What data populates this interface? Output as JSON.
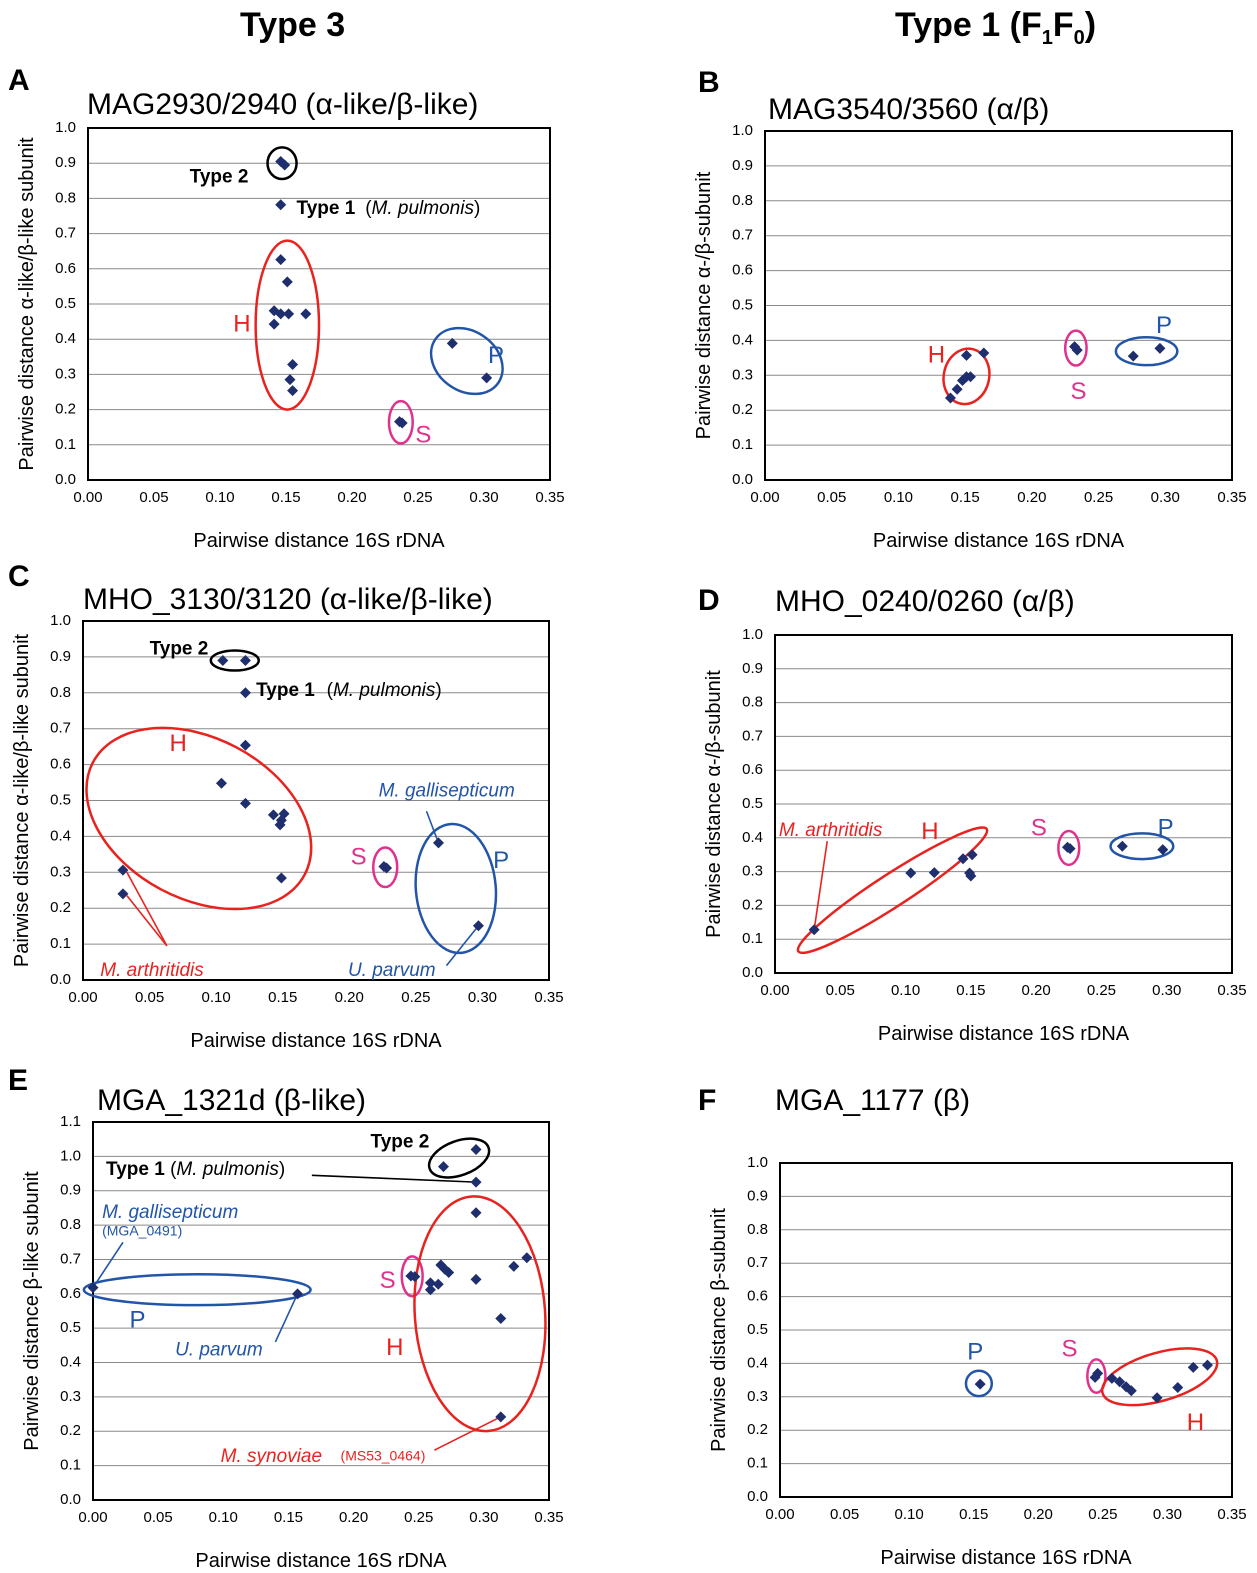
{
  "figure": {
    "column_titles": {
      "left": "Type 3",
      "right_main": "Type 1 (F",
      "right_sub1": "1",
      "right_mid": "F",
      "right_sub2": "0",
      "right_close": ")"
    }
  },
  "colors": {
    "point": "#1f2f6e",
    "human": "#e8231f",
    "swine": "#e0318c",
    "poultry": "#2255a8",
    "frame": "#000000",
    "grid": "#8a8a8a"
  },
  "chart_data": [
    {
      "panel": "A",
      "type": "scatter",
      "title": "MAG2930/2940 (α-like/β-like)",
      "xlabel": "Pairwise distance 16S rDNA",
      "ylabel": "Pairwise distance α-like/β-like subunit",
      "xlim": [
        0,
        0.35
      ],
      "ylim": [
        0,
        1.0
      ],
      "grid": true,
      "xticks": [
        "0.00",
        "0.05",
        "0.10",
        "0.15",
        "0.20",
        "0.25",
        "0.30",
        "0.35"
      ],
      "yticks": [
        "0.0",
        "0.1",
        "0.2",
        "0.3",
        "0.4",
        "0.5",
        "0.6",
        "0.7",
        "0.8",
        "0.9",
        "1.0"
      ],
      "points": [
        [
          0.146,
          0.905
        ],
        [
          0.149,
          0.895
        ],
        [
          0.146,
          0.782
        ],
        [
          0.146,
          0.626
        ],
        [
          0.151,
          0.563
        ],
        [
          0.141,
          0.481
        ],
        [
          0.146,
          0.472
        ],
        [
          0.152,
          0.472
        ],
        [
          0.165,
          0.472
        ],
        [
          0.141,
          0.443
        ],
        [
          0.155,
          0.328
        ],
        [
          0.153,
          0.285
        ],
        [
          0.155,
          0.254
        ],
        [
          0.276,
          0.388
        ],
        [
          0.302,
          0.29
        ],
        [
          0.236,
          0.166
        ],
        [
          0.238,
          0.162
        ]
      ],
      "ellipses": [
        {
          "color": "frame",
          "cx": 0.147,
          "cy": 0.9,
          "rx": 0.011,
          "ry": 0.045,
          "rot": 0
        },
        {
          "color": "human",
          "cx": 0.151,
          "cy": 0.44,
          "rx": 0.024,
          "ry": 0.24,
          "rot": 0
        },
        {
          "color": "poultry",
          "cx": 0.287,
          "cy": 0.338,
          "rx": 0.029,
          "ry": 0.085,
          "rot": 35
        },
        {
          "color": "swine",
          "cx": 0.237,
          "cy": 0.164,
          "rx": 0.009,
          "ry": 0.06,
          "rot": 0
        }
      ],
      "texts": [
        {
          "text": "Type 2",
          "x": 0.077,
          "y": 0.86,
          "color": "frame",
          "bold": true
        },
        {
          "text": "Type 1",
          "x": 0.158,
          "y": 0.77,
          "color": "frame",
          "bold": true
        },
        {
          "text": "(M. pulmonis)",
          "x": 0.21,
          "y": 0.77,
          "color": "frame",
          "italicPart": "M. pulmonis"
        },
        {
          "text": "H",
          "x": 0.11,
          "y": 0.44,
          "color": "human",
          "big": true
        },
        {
          "text": "P",
          "x": 0.303,
          "y": 0.35,
          "color": "poultry",
          "big": true
        },
        {
          "text": "S",
          "x": 0.248,
          "y": 0.125,
          "color": "swine",
          "big": true
        }
      ],
      "lines": []
    },
    {
      "panel": "B",
      "type": "scatter",
      "title": "MAG3540/3560 (α/β)",
      "xlabel": "Pairwise distance 16S rDNA",
      "ylabel": "Pairwise distance α-/β-subunit",
      "xlim": [
        0,
        0.35
      ],
      "ylim": [
        0,
        1.0
      ],
      "grid": true,
      "xticks": [
        "0.00",
        "0.05",
        "0.10",
        "0.15",
        "0.20",
        "0.25",
        "0.30",
        "0.35"
      ],
      "yticks": [
        "0.0",
        "0.1",
        "0.2",
        "0.3",
        "0.4",
        "0.5",
        "0.6",
        "0.7",
        "0.8",
        "0.9",
        "1.0"
      ],
      "points": [
        [
          0.139,
          0.235
        ],
        [
          0.144,
          0.26
        ],
        [
          0.148,
          0.285
        ],
        [
          0.151,
          0.296
        ],
        [
          0.154,
          0.296
        ],
        [
          0.151,
          0.357
        ],
        [
          0.164,
          0.364
        ],
        [
          0.232,
          0.382
        ],
        [
          0.234,
          0.372
        ],
        [
          0.276,
          0.355
        ],
        [
          0.296,
          0.377
        ]
      ],
      "ellipses": [
        {
          "color": "human",
          "cx": 0.151,
          "cy": 0.297,
          "rx": 0.017,
          "ry": 0.08,
          "rot": 12
        },
        {
          "color": "swine",
          "cx": 0.233,
          "cy": 0.378,
          "rx": 0.008,
          "ry": 0.05,
          "rot": 0
        },
        {
          "color": "poultry",
          "cx": 0.286,
          "cy": 0.369,
          "rx": 0.023,
          "ry": 0.04,
          "rot": 0
        }
      ],
      "texts": [
        {
          "text": "H",
          "x": 0.122,
          "y": 0.355,
          "color": "human",
          "big": true
        },
        {
          "text": "S",
          "x": 0.229,
          "y": 0.25,
          "color": "swine",
          "big": true
        },
        {
          "text": "P",
          "x": 0.293,
          "y": 0.44,
          "color": "poultry",
          "big": true
        }
      ],
      "lines": []
    },
    {
      "panel": "C",
      "type": "scatter",
      "title": "MHO_3130/3120 (α-like/β-like)",
      "xlabel": "Pairwise distance 16S rDNA",
      "ylabel": "Pairwise distance α-like/β-like subunit",
      "xlim": [
        0,
        0.35
      ],
      "ylim": [
        0,
        1.0
      ],
      "grid": true,
      "xticks": [
        "0.00",
        "0.05",
        "0.10",
        "0.15",
        "0.20",
        "0.25",
        "0.30",
        "0.35"
      ],
      "yticks": [
        "0.0",
        "0.1",
        "0.2",
        "0.3",
        "0.4",
        "0.5",
        "0.6",
        "0.7",
        "0.8",
        "0.9",
        "1.0"
      ],
      "points": [
        [
          0.105,
          0.89
        ],
        [
          0.122,
          0.89
        ],
        [
          0.122,
          0.8
        ],
        [
          0.122,
          0.654
        ],
        [
          0.104,
          0.548
        ],
        [
          0.122,
          0.492
        ],
        [
          0.143,
          0.46
        ],
        [
          0.151,
          0.463
        ],
        [
          0.149,
          0.445
        ],
        [
          0.148,
          0.432
        ],
        [
          0.149,
          0.284
        ],
        [
          0.03,
          0.306
        ],
        [
          0.03,
          0.24
        ],
        [
          0.226,
          0.316
        ],
        [
          0.228,
          0.312
        ],
        [
          0.267,
          0.382
        ],
        [
          0.297,
          0.151
        ]
      ],
      "ellipses": [
        {
          "color": "frame",
          "cx": 0.114,
          "cy": 0.89,
          "rx": 0.018,
          "ry": 0.028,
          "rot": 0
        },
        {
          "color": "human",
          "cx": 0.087,
          "cy": 0.45,
          "rx": 0.09,
          "ry": 0.224,
          "rot": 28
        },
        {
          "color": "swine",
          "cx": 0.227,
          "cy": 0.314,
          "rx": 0.009,
          "ry": 0.055,
          "rot": 0
        },
        {
          "color": "poultry",
          "cx": 0.28,
          "cy": 0.255,
          "rx": 0.03,
          "ry": 0.18,
          "rot": -5
        }
      ],
      "texts": [
        {
          "text": "Type 2",
          "x": 0.05,
          "y": 0.92,
          "color": "frame",
          "bold": true
        },
        {
          "text": "Type 1",
          "x": 0.13,
          "y": 0.805,
          "color": "frame",
          "bold": true
        },
        {
          "text": "(M. pulmonis)",
          "x": 0.183,
          "y": 0.805,
          "color": "frame",
          "italicPart": "M. pulmonis"
        },
        {
          "text": "H",
          "x": 0.065,
          "y": 0.655,
          "color": "human",
          "big": true
        },
        {
          "text": "S",
          "x": 0.201,
          "y": 0.34,
          "color": "swine",
          "big": true
        },
        {
          "text": "P",
          "x": 0.308,
          "y": 0.33,
          "color": "poultry",
          "big": true
        },
        {
          "text": "M. gallisepticum",
          "x": 0.222,
          "y": 0.525,
          "color": "poultry",
          "italic": true
        },
        {
          "text": "U. parvum",
          "x": 0.199,
          "y": 0.025,
          "color": "poultry",
          "italic": true
        },
        {
          "text": "M. arthritidis",
          "x": 0.013,
          "y": 0.025,
          "color": "human",
          "italic": true
        }
      ],
      "lines": [
        {
          "color": "poultry",
          "pts": [
            [
              0.258,
              0.47
            ],
            [
              0.267,
              0.382
            ]
          ]
        },
        {
          "color": "poultry",
          "pts": [
            [
              0.273,
              0.04
            ],
            [
              0.297,
              0.151
            ]
          ]
        },
        {
          "color": "human",
          "pts": [
            [
              0.063,
              0.095
            ],
            [
              0.033,
              0.3
            ]
          ]
        },
        {
          "color": "human",
          "pts": [
            [
              0.063,
              0.095
            ],
            [
              0.033,
              0.235
            ]
          ]
        }
      ]
    },
    {
      "panel": "D",
      "type": "scatter",
      "title": "MHO_0240/0260 (α/β)",
      "xlabel": "Pairwise distance 16S rDNA",
      "ylabel": "Pairwise distance α-/β-subunit",
      "xlim": [
        0,
        0.35
      ],
      "ylim": [
        0,
        1.0
      ],
      "grid": true,
      "xticks": [
        "0.00",
        "0.05",
        "0.10",
        "0.15",
        "0.20",
        "0.25",
        "0.30",
        "0.35"
      ],
      "yticks": [
        "0.0",
        "0.1",
        "0.2",
        "0.3",
        "0.4",
        "0.5",
        "0.6",
        "0.7",
        "0.8",
        "0.9",
        "1.0"
      ],
      "points": [
        [
          0.03,
          0.128
        ],
        [
          0.104,
          0.296
        ],
        [
          0.122,
          0.297
        ],
        [
          0.144,
          0.338
        ],
        [
          0.151,
          0.35
        ],
        [
          0.149,
          0.296
        ],
        [
          0.15,
          0.287
        ],
        [
          0.224,
          0.372
        ],
        [
          0.226,
          0.368
        ],
        [
          0.266,
          0.375
        ],
        [
          0.297,
          0.365
        ]
      ],
      "ellipses": [
        {
          "color": "human",
          "cx": 0.09,
          "cy": 0.245,
          "rx": 0.086,
          "ry": 0.048,
          "rot": -33
        },
        {
          "color": "swine",
          "cx": 0.225,
          "cy": 0.37,
          "rx": 0.008,
          "ry": 0.05,
          "rot": 0
        },
        {
          "color": "poultry",
          "cx": 0.281,
          "cy": 0.375,
          "rx": 0.024,
          "ry": 0.038,
          "rot": 0
        }
      ],
      "texts": [
        {
          "text": "M. arthritidis",
          "x": 0.003,
          "y": 0.42,
          "color": "human",
          "italic": true
        },
        {
          "text": "H",
          "x": 0.112,
          "y": 0.415,
          "color": "human",
          "big": true
        },
        {
          "text": "S",
          "x": 0.196,
          "y": 0.425,
          "color": "swine",
          "big": true
        },
        {
          "text": "P",
          "x": 0.293,
          "y": 0.425,
          "color": "poultry",
          "big": true
        }
      ],
      "lines": [
        {
          "color": "human",
          "pts": [
            [
              0.04,
              0.39
            ],
            [
              0.03,
              0.128
            ]
          ]
        }
      ]
    },
    {
      "panel": "E",
      "type": "scatter",
      "title": "MGA_1321d (β-like)",
      "xlabel": "Pairwise distance 16S rDNA",
      "ylabel": "Pairwise distance β-like subunit",
      "xlim": [
        0,
        0.35
      ],
      "ylim": [
        0,
        1.1
      ],
      "grid": true,
      "xticks": [
        "0.00",
        "0.05",
        "0.10",
        "0.15",
        "0.20",
        "0.25",
        "0.30",
        "0.35"
      ],
      "yticks": [
        "0.0",
        "0.1",
        "0.2",
        "0.3",
        "0.4",
        "0.5",
        "0.6",
        "0.7",
        "0.8",
        "0.9",
        "1.0",
        "1.1"
      ],
      "points": [
        [
          0.269,
          0.97
        ],
        [
          0.294,
          1.02
        ],
        [
          0.294,
          0.925
        ],
        [
          0.294,
          0.836
        ],
        [
          0.0,
          0.618
        ],
        [
          0.157,
          0.6
        ],
        [
          0.244,
          0.652
        ],
        [
          0.247,
          0.65
        ],
        [
          0.267,
          0.684
        ],
        [
          0.27,
          0.672
        ],
        [
          0.273,
          0.662
        ],
        [
          0.259,
          0.632
        ],
        [
          0.265,
          0.628
        ],
        [
          0.259,
          0.612
        ],
        [
          0.294,
          0.642
        ],
        [
          0.323,
          0.68
        ],
        [
          0.333,
          0.705
        ],
        [
          0.313,
          0.528
        ],
        [
          0.313,
          0.242
        ]
      ],
      "ellipses": [
        {
          "color": "frame",
          "cx": 0.281,
          "cy": 0.995,
          "rx": 0.024,
          "ry": 0.05,
          "rot": -20
        },
        {
          "color": "poultry",
          "cx": 0.08,
          "cy": 0.612,
          "rx": 0.087,
          "ry": 0.045,
          "rot": 0
        },
        {
          "color": "swine",
          "cx": 0.245,
          "cy": 0.651,
          "rx": 0.008,
          "ry": 0.058,
          "rot": 0
        },
        {
          "color": "human",
          "cx": 0.297,
          "cy": 0.542,
          "rx": 0.05,
          "ry": 0.342,
          "rot": -4
        }
      ],
      "texts": [
        {
          "text": "Type 2",
          "x": 0.213,
          "y": 1.04,
          "color": "frame",
          "bold": true
        },
        {
          "text": "Type 1 (M. pulmonis)",
          "x": 0.01,
          "y": 0.96,
          "color": "frame",
          "mixType1": true
        },
        {
          "text": "M. gallisepticum",
          "x": 0.007,
          "y": 0.835,
          "color": "poultry",
          "italic": true
        },
        {
          "text": "(MGA_0491)",
          "x": 0.007,
          "y": 0.78,
          "color": "poultry",
          "small": true
        },
        {
          "text": "P",
          "x": 0.028,
          "y": 0.52,
          "color": "poultry",
          "big": true
        },
        {
          "text": "U. parvum",
          "x": 0.063,
          "y": 0.435,
          "color": "poultry",
          "italic": true
        },
        {
          "text": "S",
          "x": 0.22,
          "y": 0.635,
          "color": "swine",
          "big": true
        },
        {
          "text": "H",
          "x": 0.225,
          "y": 0.44,
          "color": "human",
          "big": true
        },
        {
          "text": "M. synoviae",
          "x": 0.098,
          "y": 0.125,
          "color": "human",
          "italic": true
        },
        {
          "text": "(MS53_0464)",
          "x": 0.19,
          "y": 0.125,
          "color": "human",
          "small": true
        }
      ],
      "lines": [
        {
          "color": "frame",
          "pts": [
            [
              0.168,
              0.945
            ],
            [
              0.294,
              0.925
            ]
          ]
        },
        {
          "color": "poultry",
          "pts": [
            [
              0.023,
              0.75
            ],
            [
              0.0,
              0.618
            ]
          ]
        },
        {
          "color": "poultry",
          "pts": [
            [
              0.14,
              0.46
            ],
            [
              0.157,
              0.6
            ]
          ]
        },
        {
          "color": "human",
          "pts": [
            [
              0.262,
              0.145
            ],
            [
              0.313,
              0.242
            ]
          ]
        }
      ]
    },
    {
      "panel": "F",
      "type": "scatter",
      "title": "MGA_1177 (β)",
      "xlabel": "Pairwise distance 16S rDNA",
      "ylabel": "Pairwise distance β-subunit",
      "xlim": [
        0,
        0.35
      ],
      "ylim": [
        0,
        1.0
      ],
      "grid": true,
      "xticks": [
        "0.00",
        "0.05",
        "0.10",
        "0.15",
        "0.20",
        "0.25",
        "0.30",
        "0.35"
      ],
      "yticks": [
        "0.0",
        "0.1",
        "0.2",
        "0.3",
        "0.4",
        "0.5",
        "0.6",
        "0.7",
        "0.8",
        "0.9",
        "1.0"
      ],
      "points": [
        [
          0.155,
          0.338
        ],
        [
          0.244,
          0.358
        ],
        [
          0.246,
          0.37
        ],
        [
          0.257,
          0.355
        ],
        [
          0.263,
          0.345
        ],
        [
          0.268,
          0.33
        ],
        [
          0.272,
          0.318
        ],
        [
          0.292,
          0.297
        ],
        [
          0.308,
          0.328
        ],
        [
          0.32,
          0.388
        ],
        [
          0.331,
          0.395
        ]
      ],
      "ellipses": [
        {
          "color": "poultry",
          "cx": 0.154,
          "cy": 0.34,
          "rx": 0.01,
          "ry": 0.038,
          "rot": 0
        },
        {
          "color": "swine",
          "cx": 0.245,
          "cy": 0.362,
          "rx": 0.007,
          "ry": 0.05,
          "rot": 0
        },
        {
          "color": "human",
          "cx": 0.294,
          "cy": 0.36,
          "rx": 0.046,
          "ry": 0.072,
          "rot": -16
        }
      ],
      "texts": [
        {
          "text": "P",
          "x": 0.145,
          "y": 0.43,
          "color": "poultry",
          "big": true
        },
        {
          "text": "S",
          "x": 0.218,
          "y": 0.44,
          "color": "swine",
          "big": true
        },
        {
          "text": "H",
          "x": 0.315,
          "y": 0.22,
          "color": "human",
          "big": true
        }
      ],
      "lines": []
    }
  ]
}
